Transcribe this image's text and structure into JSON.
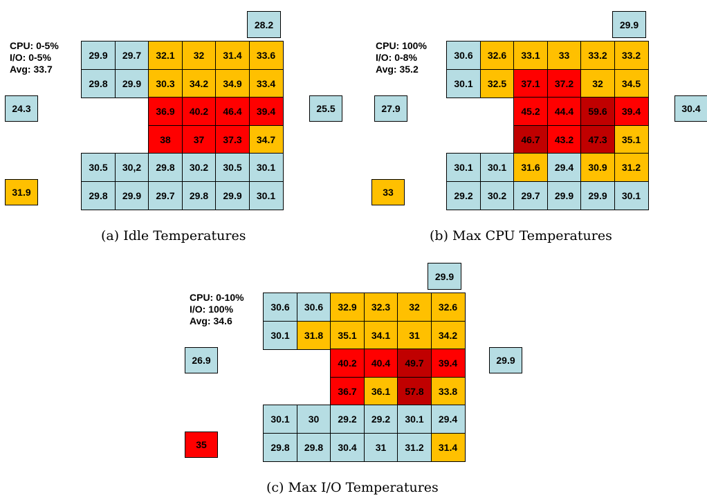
{
  "panels": [
    {
      "id": "a",
      "info": [
        "CPU: 0-5%",
        "I/O: 0-5%",
        "Avg: 33.7"
      ],
      "caption": "(a) Idle Temperatures",
      "top_right": {
        "v": "28.2",
        "c": "cool"
      },
      "left_mid": {
        "v": "24.3",
        "c": "cool"
      },
      "left_bottom": {
        "v": "31.9",
        "c": "warm"
      },
      "right_mid": {
        "v": "25.5",
        "c": "cool"
      },
      "rows": [
        [
          {
            "v": "29.9",
            "c": "cool"
          },
          {
            "v": "29.7",
            "c": "cool"
          },
          {
            "v": "32.1",
            "c": "warm"
          },
          {
            "v": "32",
            "c": "warm"
          },
          {
            "v": "31.4",
            "c": "warm"
          },
          {
            "v": "33.6",
            "c": "warm"
          }
        ],
        [
          {
            "v": "29.8",
            "c": "cool"
          },
          {
            "v": "29.9",
            "c": "cool"
          },
          {
            "v": "30.3",
            "c": "warm"
          },
          {
            "v": "34.2",
            "c": "warm"
          },
          {
            "v": "34.9",
            "c": "warm"
          },
          {
            "v": "33.4",
            "c": "warm"
          }
        ],
        [
          null,
          null,
          {
            "v": "36.9",
            "c": "hot"
          },
          {
            "v": "40.2",
            "c": "hot"
          },
          {
            "v": "46.4",
            "c": "hot"
          },
          {
            "v": "39.4",
            "c": "hot"
          }
        ],
        [
          null,
          null,
          {
            "v": "38",
            "c": "hot"
          },
          {
            "v": "37",
            "c": "hot"
          },
          {
            "v": "37.3",
            "c": "hot"
          },
          {
            "v": "34.7",
            "c": "warm"
          }
        ],
        [
          {
            "v": "30.5",
            "c": "cool"
          },
          {
            "v": "30,2",
            "c": "cool"
          },
          {
            "v": "29.8",
            "c": "cool"
          },
          {
            "v": "30.2",
            "c": "cool"
          },
          {
            "v": "30.5",
            "c": "cool"
          },
          {
            "v": "30.1",
            "c": "cool"
          }
        ],
        [
          {
            "v": "29.8",
            "c": "cool"
          },
          {
            "v": "29.9",
            "c": "cool"
          },
          {
            "v": "29.7",
            "c": "cool"
          },
          {
            "v": "29.8",
            "c": "cool"
          },
          {
            "v": "29.9",
            "c": "cool"
          },
          {
            "v": "30.1",
            "c": "cool"
          }
        ]
      ]
    },
    {
      "id": "b",
      "info": [
        "CPU: 100%",
        "I/O: 0-8%",
        "Avg: 35.2"
      ],
      "caption": "(b) Max CPU Temperatures",
      "top_right": {
        "v": "29.9",
        "c": "cool"
      },
      "left_mid": {
        "v": "27.9",
        "c": "cool"
      },
      "left_bottom": {
        "v": "33",
        "c": "warm"
      },
      "right_mid": {
        "v": "30.4",
        "c": "cool"
      },
      "rows": [
        [
          {
            "v": "30.6",
            "c": "cool"
          },
          {
            "v": "32.6",
            "c": "warm"
          },
          {
            "v": "33.1",
            "c": "warm"
          },
          {
            "v": "33",
            "c": "warm"
          },
          {
            "v": "33.2",
            "c": "warm"
          },
          {
            "v": "33.2",
            "c": "warm"
          }
        ],
        [
          {
            "v": "30.1",
            "c": "cool"
          },
          {
            "v": "32.5",
            "c": "warm"
          },
          {
            "v": "37.1",
            "c": "hot"
          },
          {
            "v": "37.2",
            "c": "hot"
          },
          {
            "v": "32",
            "c": "warm"
          },
          {
            "v": "34.5",
            "c": "warm"
          }
        ],
        [
          null,
          null,
          {
            "v": "45.2",
            "c": "hot"
          },
          {
            "v": "44.4",
            "c": "hot"
          },
          {
            "v": "59.6",
            "c": "max"
          },
          {
            "v": "39.4",
            "c": "hot"
          }
        ],
        [
          null,
          null,
          {
            "v": "46.7",
            "c": "max"
          },
          {
            "v": "43.2",
            "c": "hot"
          },
          {
            "v": "47.3",
            "c": "max"
          },
          {
            "v": "35.1",
            "c": "warm"
          }
        ],
        [
          {
            "v": "30.1",
            "c": "cool"
          },
          {
            "v": "30.1",
            "c": "cool"
          },
          {
            "v": "31.6",
            "c": "warm"
          },
          {
            "v": "29.4",
            "c": "cool"
          },
          {
            "v": "30.9",
            "c": "warm"
          },
          {
            "v": "31.2",
            "c": "warm"
          }
        ],
        [
          {
            "v": "29.2",
            "c": "cool"
          },
          {
            "v": "30.2",
            "c": "cool"
          },
          {
            "v": "29.7",
            "c": "cool"
          },
          {
            "v": "29.9",
            "c": "cool"
          },
          {
            "v": "29.9",
            "c": "cool"
          },
          {
            "v": "30.1",
            "c": "cool"
          }
        ]
      ]
    },
    {
      "id": "c",
      "info": [
        "CPU: 0-10%",
        "I/O: 100%",
        "Avg: 34.6"
      ],
      "caption": "(c) Max I/O Temperatures",
      "top_right": {
        "v": "29.9",
        "c": "cool"
      },
      "left_mid": {
        "v": "26.9",
        "c": "cool"
      },
      "left_bottom": {
        "v": "35",
        "c": "hot"
      },
      "right_mid": {
        "v": "29.9",
        "c": "cool"
      },
      "rows": [
        [
          {
            "v": "30.6",
            "c": "cool"
          },
          {
            "v": "30.6",
            "c": "cool"
          },
          {
            "v": "32.9",
            "c": "warm"
          },
          {
            "v": "32.3",
            "c": "warm"
          },
          {
            "v": "32",
            "c": "warm"
          },
          {
            "v": "32.6",
            "c": "warm"
          }
        ],
        [
          {
            "v": "30.1",
            "c": "cool"
          },
          {
            "v": "31.8",
            "c": "warm"
          },
          {
            "v": "35.1",
            "c": "warm"
          },
          {
            "v": "34.1",
            "c": "warm"
          },
          {
            "v": "31",
            "c": "warm"
          },
          {
            "v": "34.2",
            "c": "warm"
          }
        ],
        [
          null,
          null,
          {
            "v": "40.2",
            "c": "hot"
          },
          {
            "v": "40.4",
            "c": "hot"
          },
          {
            "v": "49.7",
            "c": "max"
          },
          {
            "v": "39.4",
            "c": "hot"
          }
        ],
        [
          null,
          null,
          {
            "v": "36.7",
            "c": "hot"
          },
          {
            "v": "36.1",
            "c": "warm"
          },
          {
            "v": "57.8",
            "c": "max"
          },
          {
            "v": "33.8",
            "c": "warm"
          }
        ],
        [
          {
            "v": "30.1",
            "c": "cool"
          },
          {
            "v": "30",
            "c": "cool"
          },
          {
            "v": "29.2",
            "c": "cool"
          },
          {
            "v": "29.2",
            "c": "cool"
          },
          {
            "v": "30.1",
            "c": "cool"
          },
          {
            "v": "29.4",
            "c": "cool"
          }
        ],
        [
          {
            "v": "29.8",
            "c": "cool"
          },
          {
            "v": "29.8",
            "c": "cool"
          },
          {
            "v": "30.4",
            "c": "cool"
          },
          {
            "v": "31",
            "c": "cool"
          },
          {
            "v": "31.2",
            "c": "cool"
          },
          {
            "v": "31.4",
            "c": "warm"
          }
        ]
      ]
    }
  ],
  "colors": {
    "cool": "#b6dde3",
    "warm": "#ffc000",
    "hot": "#ff0000",
    "max": "#c00000"
  }
}
